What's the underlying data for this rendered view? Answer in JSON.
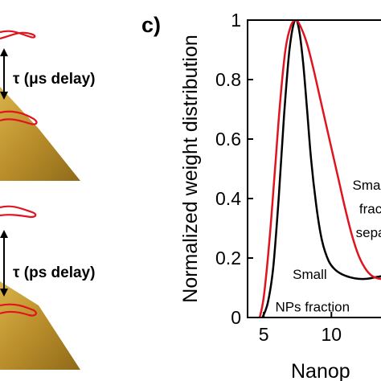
{
  "panel_label": "c)",
  "left_panel": {
    "top_delay_label": "τ (μs delay)",
    "bottom_delay_label": "τ (ps delay)"
  },
  "chart_data": {
    "type": "line",
    "ylabel": "Normalized weight distribution",
    "xlabel": "Nanop",
    "xlim": [
      3.8,
      14.5
    ],
    "ylim": [
      0,
      1
    ],
    "x_ticks": [
      5,
      10
    ],
    "y_ticks": [
      0,
      0.2,
      0.4,
      0.6,
      0.8,
      1
    ],
    "y_tick_labels": [
      "0",
      "0.2",
      "0.4",
      "0.6",
      "0.8",
      "1"
    ],
    "x_tick_labels": [
      "5",
      "10"
    ],
    "series": [
      {
        "color": "#000000",
        "x": [
          4.9,
          5.3,
          5.7,
          6.1,
          6.5,
          6.9,
          7.3,
          7.6,
          7.9,
          8.2,
          8.5,
          8.9,
          9.3,
          9.8,
          10.3,
          10.8,
          11.4,
          12.0,
          12.6,
          13.2,
          13.8,
          14.5
        ],
        "y": [
          0.0,
          0.05,
          0.17,
          0.4,
          0.68,
          0.9,
          1.0,
          0.97,
          0.86,
          0.7,
          0.53,
          0.37,
          0.26,
          0.19,
          0.16,
          0.145,
          0.135,
          0.13,
          0.13,
          0.135,
          0.14,
          0.15
        ]
      },
      {
        "color": "#e0141e",
        "x": [
          4.7,
          5.0,
          5.4,
          5.8,
          6.2,
          6.6,
          7.0,
          7.4,
          7.8,
          8.2,
          8.6,
          9.0,
          9.5,
          10.0,
          10.5,
          11.0,
          11.5,
          12.0,
          12.5,
          13.0,
          13.6,
          14.5
        ],
        "y": [
          0.0,
          0.07,
          0.25,
          0.48,
          0.72,
          0.9,
          0.98,
          1.0,
          0.97,
          0.92,
          0.85,
          0.77,
          0.67,
          0.57,
          0.47,
          0.37,
          0.28,
          0.21,
          0.165,
          0.14,
          0.13,
          0.13
        ]
      }
    ],
    "annotations": [
      {
        "text": "Small",
        "x": 8.4,
        "y": 0.13
      },
      {
        "text": "NPs fraction",
        "x": 8.6,
        "y": 0.02
      },
      {
        "text": "Sma",
        "x": 12.6,
        "y": 0.43
      },
      {
        "text": "frac",
        "x": 12.9,
        "y": 0.35
      },
      {
        "text": "sepa",
        "x": 12.9,
        "y": 0.27
      }
    ]
  }
}
